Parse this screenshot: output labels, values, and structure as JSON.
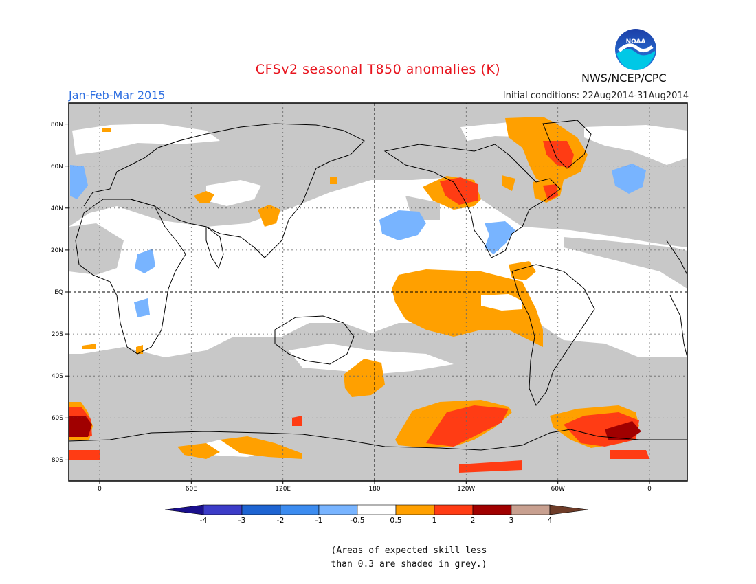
{
  "header": {
    "title": "CFSv2 seasonal T850 anomalies (K)",
    "period": "Jan-Feb-Mar 2015",
    "initial_conditions": "Initial conditions: 22Aug2014-31Aug2014",
    "agency": "NWS/NCEP/CPC",
    "logo_text": "NOAA"
  },
  "map": {
    "lat_labels": [
      "80N",
      "60N",
      "40N",
      "20N",
      "EQ",
      "20S",
      "40S",
      "60S",
      "80S"
    ],
    "lon_labels": [
      "0",
      "60E",
      "120E",
      "180",
      "120W",
      "60W",
      "0"
    ],
    "colors": {
      "skill_grey": "#c8c8c8",
      "neutral": "#ffffff",
      "pos_05_1": "#ffa000",
      "pos_1_2": "#ff3c14",
      "pos_2_3": "#a00000",
      "neg_05_1": "#78b4ff",
      "coast": "#000000"
    },
    "regions": [
      {
        "name": "el-nino-warm-anomaly",
        "class": "0.5-1"
      },
      {
        "name": "north-pacific-warm-anomaly",
        "class": "1-2"
      },
      {
        "name": "north-pacific-cold-anomaly",
        "class": "-1--0.5"
      },
      {
        "name": "greenland-warm-anomaly",
        "class": "1-2"
      },
      {
        "name": "south-pacific-warm-anomaly",
        "class": "1-2"
      },
      {
        "name": "south-atlantic-warm-anomaly",
        "class": "2-3"
      },
      {
        "name": "weddell-warm-anomaly",
        "class": "2-3"
      }
    ]
  },
  "legend": {
    "labels": [
      "-4",
      "-3",
      "-2",
      "-1",
      "-0.5",
      "0.5",
      "1",
      "2",
      "3",
      "4"
    ],
    "colors": [
      "#1a0f8c",
      "#3c3cc8",
      "#1e64d2",
      "#3c8cf0",
      "#78b4ff",
      "#ffffff",
      "#ffa000",
      "#ff3c14",
      "#a00000",
      "#c8a090",
      "#6e3c28"
    ]
  },
  "footnote": {
    "line1": "(Areas of expected skill less",
    "line2": "than 0.3 are shaded in grey.)"
  }
}
